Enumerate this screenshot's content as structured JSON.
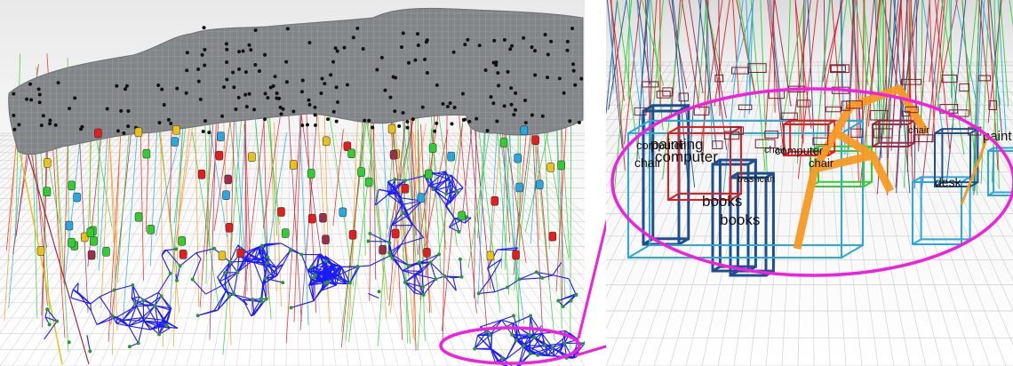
{
  "labels": [
    {
      "id": "painting",
      "text": "painting"
    },
    {
      "id": "chair-1",
      "text": "chair"
    },
    {
      "id": "computer-1",
      "text": "computer"
    },
    {
      "id": "books-1",
      "text": "books"
    },
    {
      "id": "books-2",
      "text": "books"
    },
    {
      "id": "trashcan",
      "text": "trashcan"
    },
    {
      "id": "chair-2",
      "text": "chair"
    },
    {
      "id": "computer-2",
      "text": "computer"
    },
    {
      "id": "chair-3",
      "text": "chair"
    },
    {
      "id": "desk",
      "text": "desk"
    },
    {
      "id": "paint",
      "text": "paint"
    },
    {
      "id": "computer-3",
      "text": "computer"
    },
    {
      "id": "chair-4",
      "text": "chair"
    }
  ],
  "colors": {
    "highlight": "#ee22dd",
    "mesh": "#1a1aff",
    "floor_grid": "#d6d6d6",
    "ceiling": "#808385",
    "red": "#e51d1d",
    "green": "#33cc33",
    "cyan": "#29a8e0",
    "orange": "#f59a23",
    "navy": "#1e4f8c",
    "maroon": "#9b2d4b",
    "yellow": "#e8c21a"
  }
}
